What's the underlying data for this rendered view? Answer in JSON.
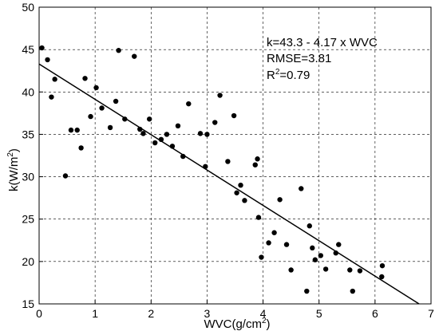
{
  "chart_data": {
    "type": "scatter",
    "title": "",
    "xlabel": {
      "main": "WVC(g/cm",
      "sup": "2",
      "end": ")"
    },
    "ylabel": {
      "main": "k(W/m",
      "sup": "2",
      "end": ")"
    },
    "xlim": [
      0,
      7
    ],
    "ylim": [
      15,
      50
    ],
    "xticks": [
      "0",
      "1",
      "2",
      "3",
      "4",
      "5",
      "6",
      "7"
    ],
    "yticks": [
      "15",
      "20",
      "25",
      "30",
      "35",
      "40",
      "45",
      "50"
    ],
    "grid": "dashed",
    "annotations": {
      "equation": "k=43.3 - 4.17 x WVC",
      "rmse": "RMSE=3.81",
      "r2_prefix": "R",
      "r2_sup": "2",
      "r2_value": "=0.79"
    },
    "fit_line": {
      "intercept": 43.3,
      "slope": -4.17
    },
    "points": {
      "x": [
        0.05,
        0.15,
        0.22,
        0.28,
        0.47,
        0.57,
        0.68,
        0.75,
        0.82,
        0.92,
        1.02,
        1.12,
        1.27,
        1.37,
        1.42,
        1.53,
        1.7,
        1.8,
        1.86,
        1.97,
        2.07,
        2.18,
        2.28,
        2.38,
        2.48,
        2.57,
        2.67,
        2.88,
        2.97,
        3.0,
        3.14,
        3.23,
        3.37,
        3.48,
        3.53,
        3.6,
        3.67,
        3.86,
        3.9,
        3.92,
        3.97,
        4.1,
        4.2,
        4.3,
        4.42,
        4.5,
        4.68,
        4.78,
        4.83,
        4.88,
        4.93,
        5.03,
        5.12,
        5.3,
        5.35,
        5.55,
        5.6,
        5.73,
        6.12,
        6.13
      ],
      "y": [
        45.2,
        43.8,
        39.4,
        41.5,
        30.1,
        35.5,
        35.5,
        33.4,
        41.6,
        37.1,
        40.5,
        38.1,
        35.8,
        38.9,
        44.9,
        36.8,
        44.2,
        35.6,
        35.1,
        36.8,
        34.0,
        34.4,
        35.0,
        33.6,
        36.0,
        32.4,
        38.6,
        35.1,
        31.2,
        35.0,
        36.4,
        39.6,
        31.8,
        37.2,
        28.1,
        29.0,
        27.2,
        31.4,
        32.1,
        25.2,
        20.5,
        22.2,
        23.4,
        27.3,
        22.0,
        19.0,
        28.6,
        16.5,
        24.2,
        21.6,
        20.2,
        20.7,
        19.1,
        21.0,
        22.0,
        19.0,
        16.5,
        18.9,
        18.2,
        19.5
      ]
    }
  }
}
